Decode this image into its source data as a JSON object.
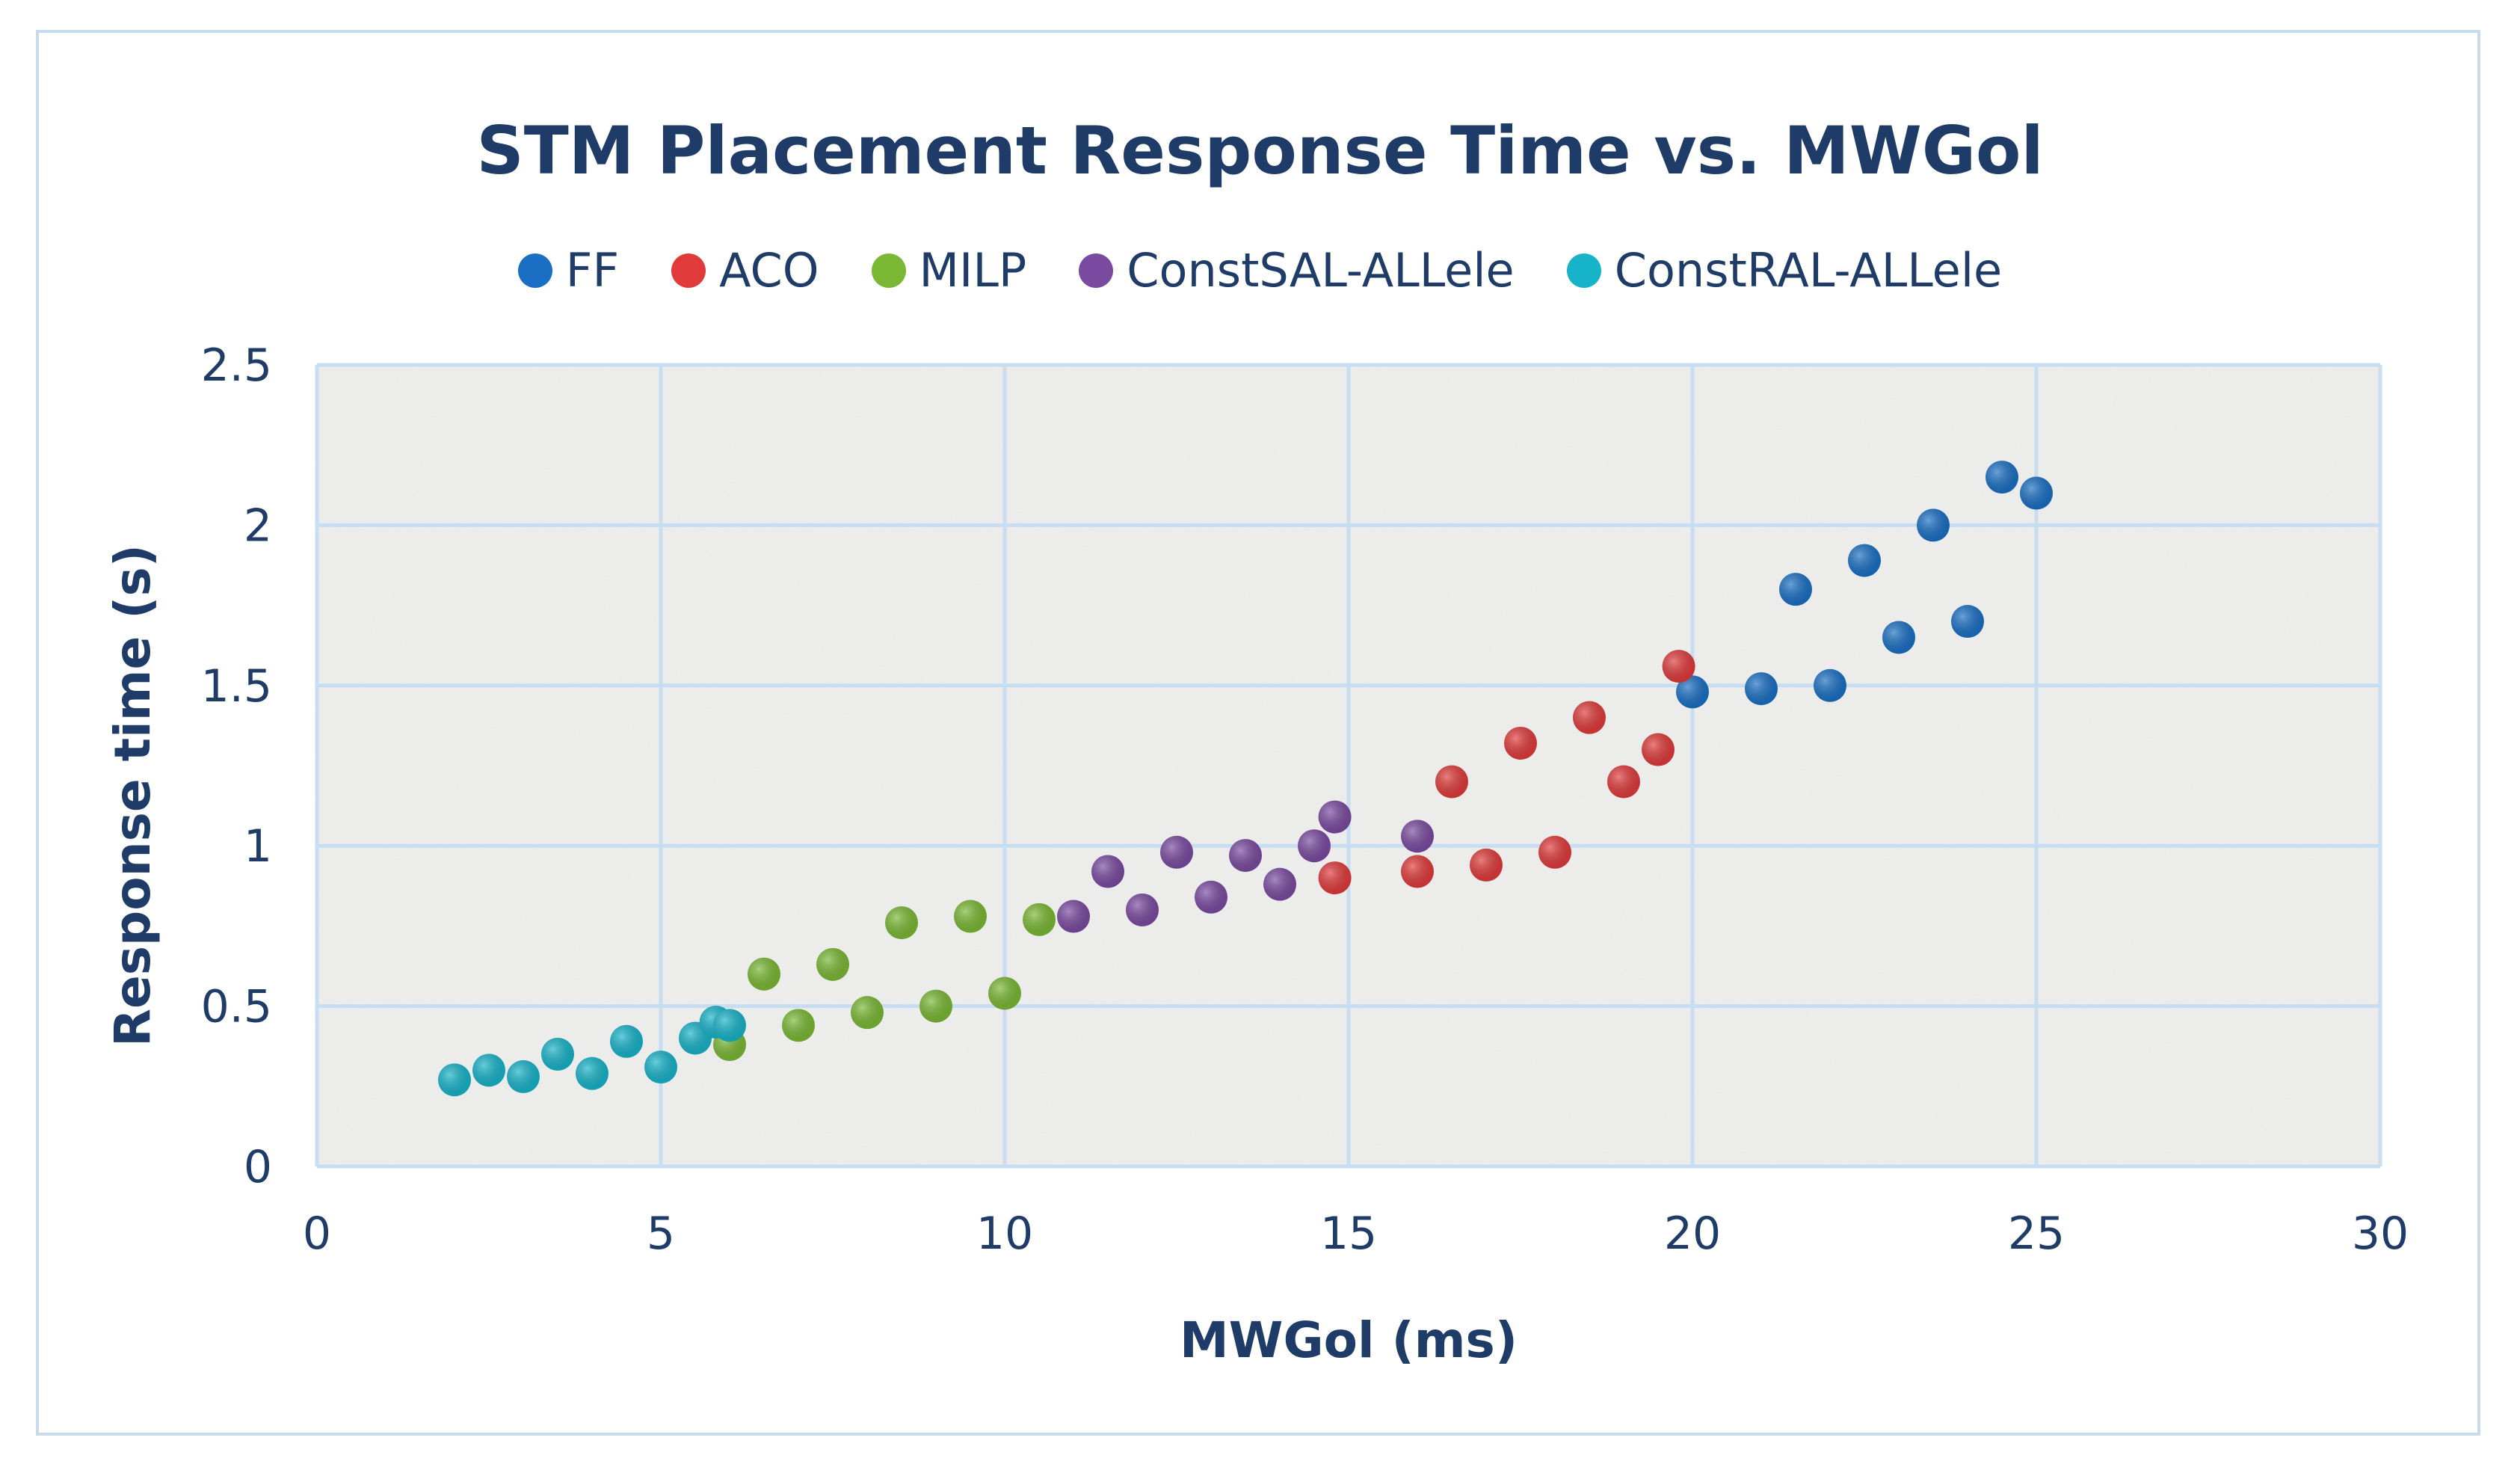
{
  "chart_data": {
    "type": "scatter",
    "title": "STM Placement Response Time vs. MWGol",
    "xlabel": "MWGol (ms)",
    "ylabel": "Response time (s)",
    "xlim": [
      0,
      30
    ],
    "ylim": [
      0,
      2.5
    ],
    "xticks": [
      0,
      5,
      10,
      15,
      20,
      25,
      30
    ],
    "yticks": [
      0,
      0.5,
      1,
      1.5,
      2,
      2.5
    ],
    "xtick_labels": [
      "0",
      "5",
      "10",
      "15",
      "20",
      "25",
      "30"
    ],
    "ytick_labels": [
      "0",
      "0.5",
      "1",
      "1.5",
      "2",
      "2.5"
    ],
    "grid": true,
    "legend_position": "top",
    "series": [
      {
        "name": "FF",
        "color": "#1a6fc4",
        "points": [
          [
            20,
            1.48
          ],
          [
            21,
            1.49
          ],
          [
            21.5,
            1.8
          ],
          [
            22,
            1.5
          ],
          [
            22.5,
            1.89
          ],
          [
            23,
            1.65
          ],
          [
            23.5,
            2.0
          ],
          [
            24,
            1.7
          ],
          [
            24.5,
            2.15
          ],
          [
            25,
            2.1
          ]
        ]
      },
      {
        "name": "ACO",
        "color": "#e03a3a",
        "points": [
          [
            14.8,
            0.9
          ],
          [
            16,
            0.92
          ],
          [
            16.5,
            1.2
          ],
          [
            17,
            0.94
          ],
          [
            17.5,
            1.32
          ],
          [
            18,
            0.98
          ],
          [
            18.5,
            1.4
          ],
          [
            19,
            1.2
          ],
          [
            19.5,
            1.3
          ],
          [
            19.8,
            1.56
          ]
        ]
      },
      {
        "name": "MILP",
        "color": "#7ab833",
        "points": [
          [
            6,
            0.38
          ],
          [
            6.5,
            0.6
          ],
          [
            7,
            0.44
          ],
          [
            7.5,
            0.63
          ],
          [
            8,
            0.48
          ],
          [
            8.5,
            0.76
          ],
          [
            9,
            0.5
          ],
          [
            9.5,
            0.78
          ],
          [
            10,
            0.54
          ],
          [
            10.5,
            0.77
          ]
        ]
      },
      {
        "name": "ConstSAL-ALLele",
        "color": "#7a4aa0",
        "points": [
          [
            11,
            0.78
          ],
          [
            11.5,
            0.92
          ],
          [
            12,
            0.8
          ],
          [
            12.5,
            0.98
          ],
          [
            13,
            0.84
          ],
          [
            13.5,
            0.97
          ],
          [
            14,
            0.88
          ],
          [
            14.5,
            1.0
          ],
          [
            14.8,
            1.09
          ],
          [
            16,
            1.03
          ]
        ]
      },
      {
        "name": "ConstRAL-ALLele",
        "color": "#17b3c9",
        "points": [
          [
            2,
            0.27
          ],
          [
            2.5,
            0.3
          ],
          [
            3,
            0.28
          ],
          [
            3.5,
            0.35
          ],
          [
            4,
            0.29
          ],
          [
            4.5,
            0.39
          ],
          [
            5,
            0.31
          ],
          [
            5.5,
            0.4
          ],
          [
            5.8,
            0.45
          ],
          [
            6,
            0.44
          ]
        ]
      }
    ]
  }
}
